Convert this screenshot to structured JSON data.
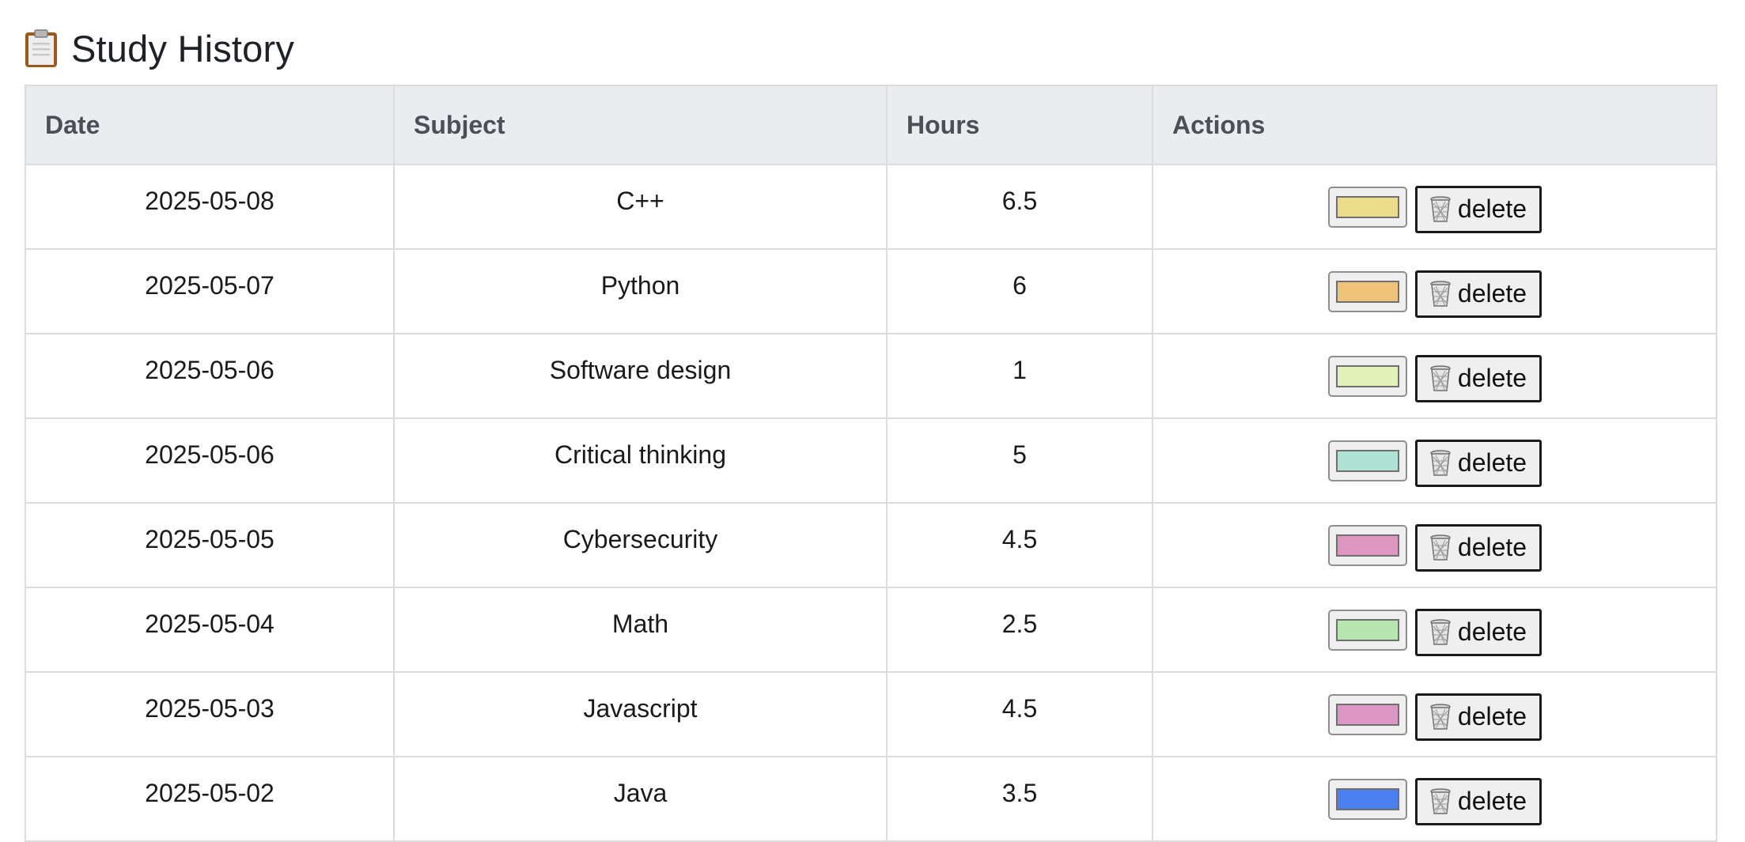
{
  "header": {
    "icon": "clipboard-icon",
    "title": "Study History"
  },
  "table": {
    "columns": [
      "Date",
      "Subject",
      "Hours",
      "Actions"
    ],
    "delete_label": "delete",
    "rows": [
      {
        "date": "2025-05-08",
        "subject": "C++",
        "hours": "6.5",
        "color": "#ebdc8c"
      },
      {
        "date": "2025-05-07",
        "subject": "Python",
        "hours": "6",
        "color": "#efc47a"
      },
      {
        "date": "2025-05-06",
        "subject": "Software design",
        "hours": "1",
        "color": "#e3f2b8"
      },
      {
        "date": "2025-05-06",
        "subject": "Critical thinking",
        "hours": "5",
        "color": "#b0e3d5"
      },
      {
        "date": "2025-05-05",
        "subject": "Cybersecurity",
        "hours": "4.5",
        "color": "#dd97c1"
      },
      {
        "date": "2025-05-04",
        "subject": "Math",
        "hours": "2.5",
        "color": "#b7e6b0"
      },
      {
        "date": "2025-05-03",
        "subject": "Javascript",
        "hours": "4.5",
        "color": "#dd97c5"
      },
      {
        "date": "2025-05-02",
        "subject": "Java",
        "hours": "3.5",
        "color": "#4b80ee"
      }
    ]
  }
}
